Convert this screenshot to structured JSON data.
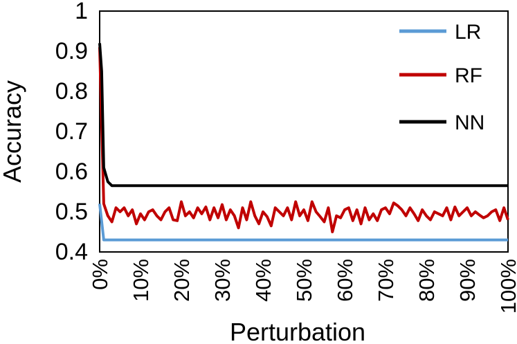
{
  "chart_data": {
    "type": "line",
    "title": "",
    "xlabel": "Perturbation",
    "ylabel": "Accuracy",
    "ylim": [
      0.4,
      1.0
    ],
    "xlim": [
      0,
      100
    ],
    "y_ticks": [
      "0.4",
      "0.5",
      "0.6",
      "0.7",
      "0.8",
      "0.9",
      "1"
    ],
    "x_ticks": [
      "0%",
      "10%",
      "20%",
      "30%",
      "40%",
      "50%",
      "60%",
      "70%",
      "80%",
      "90%",
      "100%"
    ],
    "grid": false,
    "legend_position": "top-right",
    "series": [
      {
        "name": "LR",
        "color": "#5b9bd5",
        "x": [
          0,
          1,
          100
        ],
        "y": [
          0.52,
          0.43,
          0.43
        ]
      },
      {
        "name": "RF",
        "color": "#c00000",
        "x": [
          0,
          1,
          2,
          3,
          4,
          5,
          6,
          7,
          8,
          9,
          10,
          11,
          12,
          13,
          14,
          15,
          16,
          17,
          18,
          19,
          20,
          21,
          22,
          23,
          24,
          25,
          26,
          27,
          28,
          29,
          30,
          31,
          32,
          33,
          34,
          35,
          36,
          37,
          38,
          39,
          40,
          41,
          42,
          43,
          44,
          45,
          46,
          47,
          48,
          49,
          50,
          51,
          52,
          53,
          54,
          55,
          56,
          57,
          58,
          59,
          60,
          61,
          62,
          63,
          64,
          65,
          66,
          67,
          68,
          69,
          70,
          71,
          72,
          73,
          74,
          75,
          76,
          77,
          78,
          79,
          80,
          81,
          82,
          83,
          84,
          85,
          86,
          87,
          88,
          89,
          90,
          91,
          92,
          93,
          94,
          95,
          96,
          97,
          98,
          99,
          100
        ],
        "y": [
          0.91,
          0.52,
          0.49,
          0.475,
          0.51,
          0.5,
          0.51,
          0.49,
          0.505,
          0.47,
          0.495,
          0.48,
          0.5,
          0.505,
          0.49,
          0.48,
          0.5,
          0.51,
          0.48,
          0.478,
          0.525,
          0.49,
          0.5,
          0.485,
          0.51,
          0.495,
          0.512,
          0.48,
          0.51,
          0.485,
          0.518,
          0.48,
          0.505,
          0.49,
          0.46,
          0.51,
          0.48,
          0.525,
          0.49,
          0.47,
          0.5,
          0.488,
          0.465,
          0.51,
          0.5,
          0.49,
          0.51,
          0.48,
          0.525,
          0.49,
          0.505,
          0.478,
          0.525,
          0.5,
          0.488,
          0.475,
          0.51,
          0.45,
          0.49,
          0.485,
          0.505,
          0.51,
          0.478,
          0.505,
          0.47,
          0.51,
          0.48,
          0.495,
          0.478,
          0.505,
          0.51,
          0.495,
          0.522,
          0.515,
          0.505,
          0.49,
          0.51,
          0.495,
          0.478,
          0.505,
          0.49,
          0.48,
          0.5,
          0.495,
          0.49,
          0.51,
          0.48,
          0.512,
          0.49,
          0.5,
          0.51,
          0.49,
          0.5,
          0.492,
          0.485,
          0.49,
          0.5,
          0.505,
          0.478,
          0.51,
          0.48
        ]
      },
      {
        "name": "NN",
        "color": "#000000",
        "x": [
          0,
          0.5,
          1,
          2,
          3,
          100
        ],
        "y": [
          0.92,
          0.85,
          0.61,
          0.575,
          0.565,
          0.565
        ]
      }
    ]
  }
}
